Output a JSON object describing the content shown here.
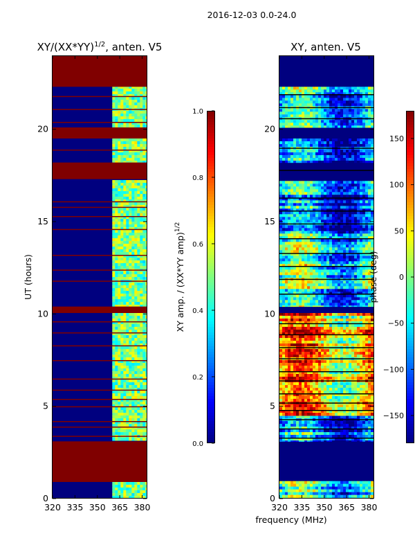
{
  "figure": {
    "suptitle": "2016-12-03 0.0-24.0",
    "xlabel": "frequency (MHz)"
  },
  "colors": {
    "nan_fill": "#800000",
    "low_fill": "#00007f",
    "jet": [
      "#00007f",
      "#0000ff",
      "#007fff",
      "#00ffff",
      "#7fff7f",
      "#ffff00",
      "#ff7f00",
      "#ff0000",
      "#7f0000"
    ]
  },
  "chart_data": [
    {
      "type": "heatmap",
      "title_text": "XY/(XX*YY)",
      "title_exp": "1/2",
      "title_suffix": ", anten. V5",
      "ylabel": "UT (hours)",
      "xlim": [
        320,
        383
      ],
      "ylim": [
        0,
        24
      ],
      "xticks": [
        320,
        335,
        350,
        365,
        380
      ],
      "yticks": [
        0,
        5,
        10,
        15,
        20
      ],
      "colorbar": {
        "label_text": "XY amp. / (XX*YY amp)",
        "label_exp": "1/2",
        "range": [
          0.0,
          1.0
        ],
        "ticks": [
          "0.0",
          "0.2",
          "0.4",
          "0.6",
          "0.8",
          "1.0"
        ],
        "tick_values": [
          0.0,
          0.2,
          0.4,
          0.6,
          0.8,
          1.0
        ]
      },
      "masked_hours": [
        [
          0.9,
          3.1
        ],
        [
          10.05,
          10.4
        ],
        [
          17.3,
          18.2
        ],
        [
          19.5,
          20.1
        ],
        [
          22.3,
          24.0
        ]
      ],
      "texture_freq_start": 360,
      "thin_line_hours": [
        3.4,
        3.9,
        4.2,
        5.0,
        5.4,
        5.9,
        6.5,
        7.5,
        8.3,
        9.0,
        9.6,
        11.8,
        12.4,
        13.2,
        14.6,
        15.3,
        15.8,
        16.1,
        17.8,
        18.9,
        20.4,
        21.1,
        21.8
      ]
    },
    {
      "type": "heatmap",
      "title_text": "XY, anten. V5",
      "xlim": [
        320,
        383
      ],
      "ylim": [
        0,
        24
      ],
      "xticks": [
        320,
        335,
        350,
        365,
        380
      ],
      "yticks": [
        0,
        5,
        10,
        15,
        20
      ],
      "colorbar": {
        "label_text": "phase (deg)",
        "range": [
          -180,
          180
        ],
        "ticks": [
          "150",
          "100",
          "50",
          "0",
          "−50",
          "−100",
          "−150"
        ],
        "tick_values": [
          150,
          100,
          50,
          0,
          -50,
          -100,
          -150
        ]
      },
      "masked_hours": [
        [
          0.95,
          3.1
        ],
        [
          10.05,
          10.4
        ],
        [
          17.2,
          18.2
        ],
        [
          19.5,
          20.1
        ],
        [
          22.3,
          24.0
        ]
      ],
      "phase_blocks": [
        {
          "from": 0.0,
          "to": 0.95,
          "base": -0.3
        },
        {
          "from": 3.1,
          "to": 4.5,
          "base": -0.5
        },
        {
          "from": 4.5,
          "to": 10.05,
          "base": 0.35
        },
        {
          "from": 10.4,
          "to": 14.5,
          "base": -0.25
        },
        {
          "from": 14.5,
          "to": 17.2,
          "base": -0.55
        },
        {
          "from": 18.2,
          "to": 19.5,
          "base": -0.7
        },
        {
          "from": 20.1,
          "to": 22.3,
          "base": -0.4
        }
      ],
      "thin_line_hours": [
        3.3,
        3.8,
        4.3,
        4.8,
        5.2,
        5.7,
        6.4,
        6.9,
        7.6,
        8.2,
        8.9,
        9.5,
        11.1,
        11.9,
        12.6,
        13.3,
        14.1,
        14.9,
        15.6,
        16.3,
        17.8,
        19.0,
        20.6,
        21.2,
        21.9
      ]
    }
  ]
}
